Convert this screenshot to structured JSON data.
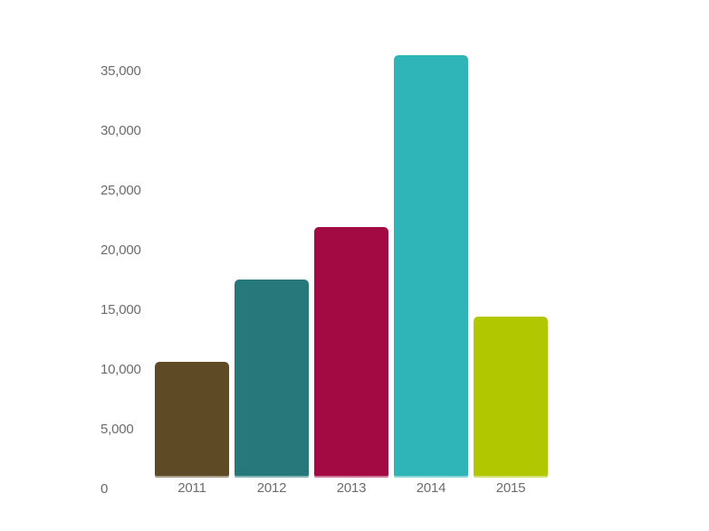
{
  "chart_data": {
    "type": "bar",
    "title": "",
    "xlabel": "",
    "ylabel": "",
    "categories": [
      "2011",
      "2012",
      "2013",
      "2014",
      "2015"
    ],
    "values": [
      10700,
      17600,
      22000,
      36400,
      14500
    ],
    "bar_colors": [
      "#5e4a25",
      "#26787b",
      "#a30a44",
      "#2fb4b7",
      "#b1c700"
    ],
    "ylim": [
      0,
      37000
    ],
    "yticks": [
      {
        "value": 0,
        "label": "0"
      },
      {
        "value": 5000,
        "label": "5,000"
      },
      {
        "value": 10000,
        "label": "10,000"
      },
      {
        "value": 15000,
        "label": "15,000"
      },
      {
        "value": 20000,
        "label": "20,000"
      },
      {
        "value": 25000,
        "label": "25,000"
      },
      {
        "value": 30000,
        "label": "30,000"
      },
      {
        "value": 35000,
        "label": "35,000"
      }
    ],
    "grid": false,
    "legend": false,
    "background_color": "#ffffff",
    "axis_text_color": "#6c6c6c"
  }
}
